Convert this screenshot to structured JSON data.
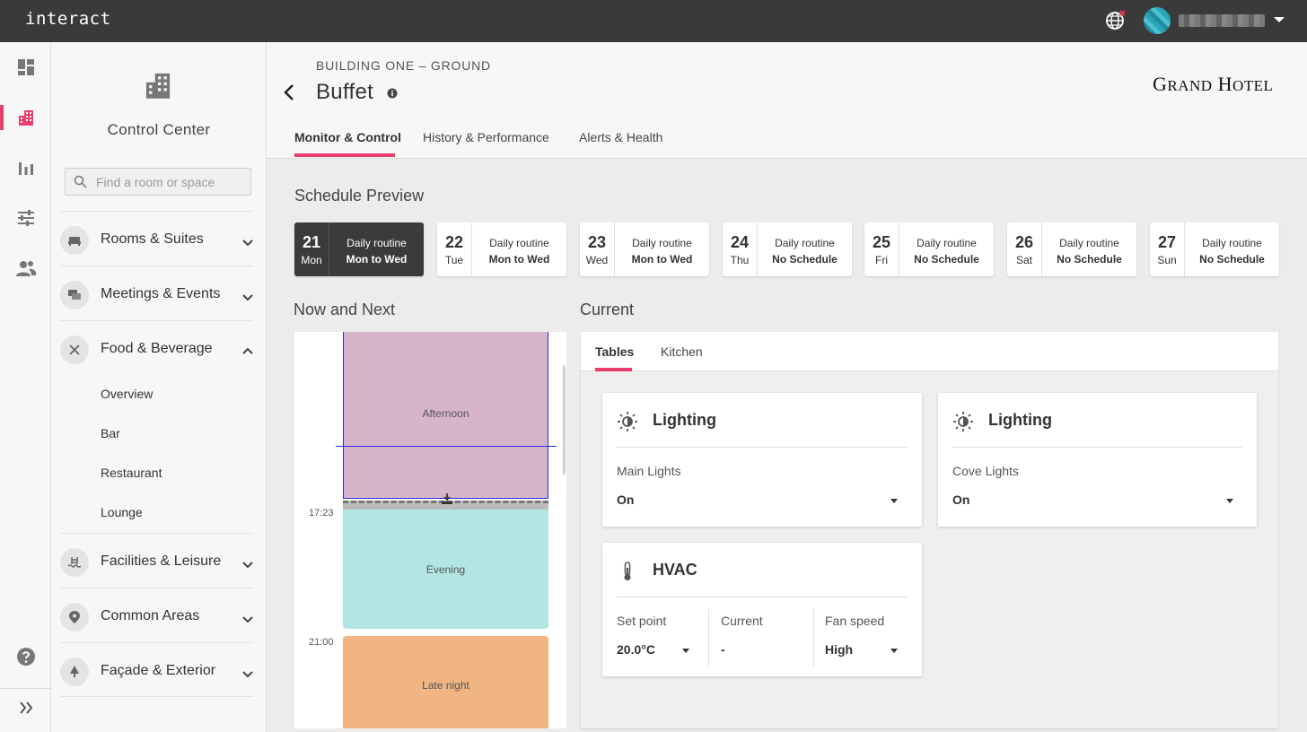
{
  "app": {
    "logo": "interact"
  },
  "sidebar": {
    "title": "Control Center",
    "search_placeholder": "Find a room or space",
    "groups": [
      {
        "label": "Rooms & Suites",
        "expanded": false
      },
      {
        "label": "Meetings & Events",
        "expanded": false
      },
      {
        "label": "Food & Beverage",
        "expanded": true,
        "items": [
          "Overview",
          "Bar",
          "Restaurant",
          "Lounge"
        ]
      },
      {
        "label": "Facilities & Leisure",
        "expanded": false
      },
      {
        "label": "Common Areas",
        "expanded": false
      },
      {
        "label": "Façade & Exterior",
        "expanded": false
      }
    ]
  },
  "header": {
    "breadcrumb": "BUILDING ONE – GROUND",
    "title": "Buffet",
    "brand_first": "G",
    "brand_first_rest": "RAND",
    "brand_second": "H",
    "brand_second_rest": "OTEL",
    "tabs": [
      "Monitor & Control",
      "History & Performance",
      "Alerts & Health"
    ],
    "active_tab": "Monitor & Control"
  },
  "schedule": {
    "title": "Schedule Preview",
    "days": [
      {
        "num": "21",
        "dow": "Mon",
        "routine": "Daily routine",
        "detail": "Mon to Wed",
        "active": true
      },
      {
        "num": "22",
        "dow": "Tue",
        "routine": "Daily routine",
        "detail": "Mon to Wed"
      },
      {
        "num": "23",
        "dow": "Wed",
        "routine": "Daily routine",
        "detail": "Mon to Wed"
      },
      {
        "num": "24",
        "dow": "Thu",
        "routine": "Daily routine",
        "detail": "No Schedule"
      },
      {
        "num": "25",
        "dow": "Fri",
        "routine": "Daily routine",
        "detail": "No Schedule"
      },
      {
        "num": "26",
        "dow": "Sat",
        "routine": "Daily routine",
        "detail": "No Schedule"
      },
      {
        "num": "27",
        "dow": "Sun",
        "routine": "Daily routine",
        "detail": "No Schedule"
      }
    ]
  },
  "now_next": {
    "title": "Now and Next",
    "blocks": [
      "Afternoon",
      "Evening",
      "Late night"
    ],
    "times": [
      "17:23",
      "21:00"
    ]
  },
  "current": {
    "title": "Current",
    "tabs": [
      "Tables",
      "Kitchen"
    ],
    "active_tab": "Tables",
    "cards": [
      {
        "title": "Lighting",
        "field": "Main Lights",
        "value": "On"
      },
      {
        "title": "Lighting",
        "field": "Cove Lights",
        "value": "On"
      }
    ],
    "hvac": {
      "title": "HVAC",
      "setpoint_label": "Set point",
      "setpoint_value": "20.0°C",
      "current_label": "Current",
      "current_value": "-",
      "fan_label": "Fan speed",
      "fan_value": "High"
    }
  },
  "colors": {
    "accent": "#e83e6c",
    "topbar": "#3a3a3a",
    "afternoon": "#d8b4cb",
    "evening": "#b2e6e2",
    "late_night": "#f0b583",
    "now_line": "#2b2bd6"
  }
}
